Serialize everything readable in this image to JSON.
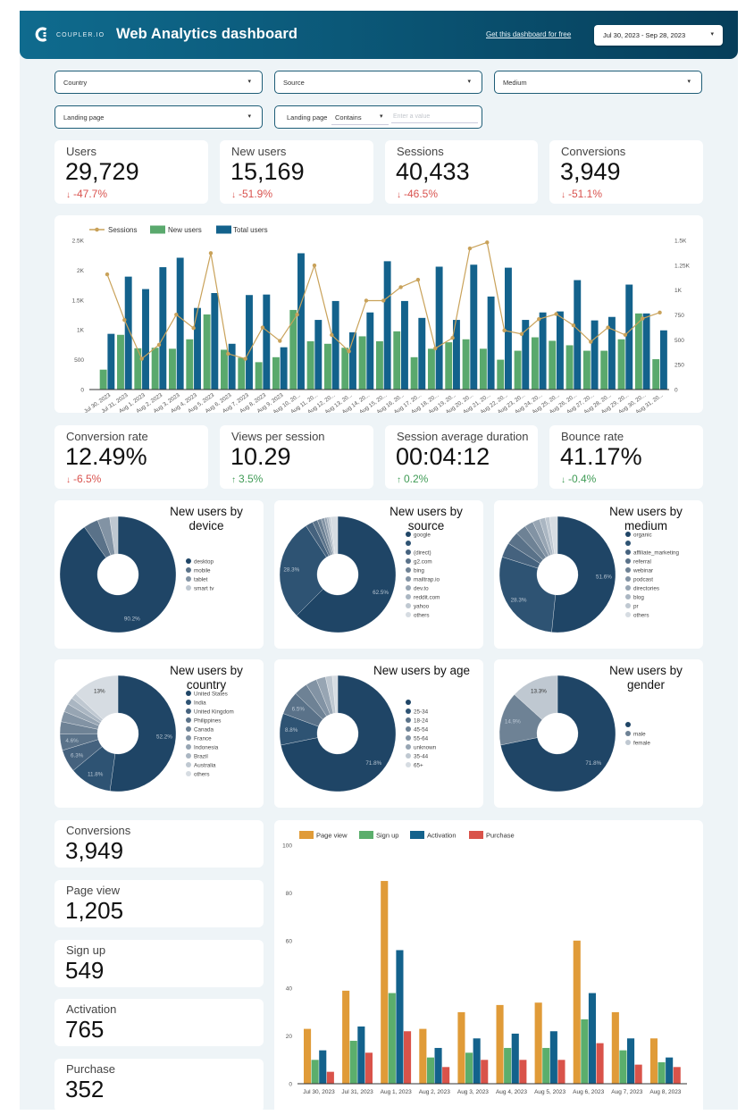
{
  "header": {
    "brand": "COUPLER.IO",
    "logo_icon": "coupler-logo-icon",
    "title": "Web Analytics dashboard",
    "cta": "Get this dashboard for free",
    "date_range": "Jul 30, 2023 - Sep 28, 2023",
    "caret": "▾"
  },
  "filters": {
    "country": "Country",
    "source": "Source",
    "medium": "Medium",
    "landing_page": "Landing page",
    "landing_page_text": {
      "label": "Landing page",
      "operator": "Contains",
      "value": "",
      "placeholder": "Enter a value"
    },
    "caret": "▾"
  },
  "colors": {
    "negative": "#d9534f",
    "positive": "#3f9b55",
    "pie_palette": [
      "#1f4566",
      "#2e5373",
      "#45627e",
      "#5a7289",
      "#6e8295",
      "#8293a4",
      "#97a5b3",
      "#aab6c2",
      "#bfc8d1",
      "#d6dce2"
    ]
  },
  "kpis_top": [
    {
      "label": "Users",
      "value": "29,729",
      "arrow": "↓",
      "change": "-47.7%",
      "color": "#d9534f"
    },
    {
      "label": "New users",
      "value": "15,169",
      "arrow": "↓",
      "change": "-51.9%",
      "color": "#d9534f"
    },
    {
      "label": "Sessions",
      "value": "40,433",
      "arrow": "↓",
      "change": "-46.5%",
      "color": "#d9534f"
    },
    {
      "label": "Conversions",
      "value": "3,949",
      "arrow": "↓",
      "change": "-51.1%",
      "color": "#d9534f"
    }
  ],
  "kpis_mid": [
    {
      "label": "Conversion rate",
      "value": "12.49%",
      "arrow": "↓",
      "change": "-6.5%",
      "color": "#d9534f"
    },
    {
      "label": "Views per session",
      "value": "10.29",
      "arrow": "↑",
      "change": "3.5%",
      "color": "#3f9b55"
    },
    {
      "label": "Session average duration",
      "value": "00:04:12",
      "arrow": "↑",
      "change": "0.2%",
      "color": "#3f9b55"
    },
    {
      "label": "Bounce rate",
      "value": "41.17%",
      "arrow": "↓",
      "change": "-0.4%",
      "color": "#3f9b55"
    }
  ],
  "conversion_cards": [
    {
      "label": "Conversions",
      "value": "3,949"
    },
    {
      "label": "Page view",
      "value": "1,205"
    },
    {
      "label": "Sign up",
      "value": "549"
    },
    {
      "label": "Activation",
      "value": "765"
    },
    {
      "label": "Purchase",
      "value": "352"
    }
  ],
  "chart_data": [
    {
      "type": "bar",
      "title": "",
      "xlabel": "",
      "ylabel": "",
      "grid": false,
      "legend": "top-left",
      "y_left_range": [
        0,
        2500
      ],
      "y_right_range": [
        0,
        1500
      ],
      "y_left_ticks": [
        {
          "value": 0,
          "label": "0"
        },
        {
          "value": 500,
          "label": "500"
        },
        {
          "value": 1000,
          "label": "1K"
        },
        {
          "value": 1500,
          "label": "1.5K"
        },
        {
          "value": 2000,
          "label": "2K"
        },
        {
          "value": 2500,
          "label": "2.5K"
        }
      ],
      "y_right_ticks": [
        {
          "value": 0,
          "label": "0"
        },
        {
          "value": 250,
          "label": "250"
        },
        {
          "value": 500,
          "label": "500"
        },
        {
          "value": 750,
          "label": "750"
        },
        {
          "value": 1000,
          "label": "1K"
        },
        {
          "value": 1250,
          "label": "1.25K"
        },
        {
          "value": 1500,
          "label": "1.5K"
        }
      ],
      "categories": [
        "Jul 30, 2023",
        "Jul 31, 2023",
        "Aug 1, 2023",
        "Aug 2, 2023",
        "Aug 3, 2023",
        "Aug 4, 2023",
        "Aug 5, 2023",
        "Aug 6, 2023",
        "Aug 7, 2023",
        "Aug 8, 2023",
        "Aug 9, 2023",
        "Aug 10, 20...",
        "Aug 11, 20...",
        "Aug 12, 20...",
        "Aug 13, 20...",
        "Aug 14, 20...",
        "Aug 15, 20...",
        "Aug 16, 20...",
        "Aug 17, 20...",
        "Aug 18, 20...",
        "Aug 19, 20...",
        "Aug 20, 20...",
        "Aug 21, 20...",
        "Aug 22, 20...",
        "Aug 23, 20...",
        "Aug 24, 20...",
        "Aug 25, 20...",
        "Aug 26, 20...",
        "Aug 27, 20...",
        "Aug 28, 20...",
        "Aug 29, 20...",
        "Aug 30, 20...",
        "Aug 31, 20..."
      ],
      "series": [
        {
          "name": "Sessions",
          "type": "line",
          "axis": "left",
          "color": "#c9a25a",
          "values": [
            1930,
            1165,
            515,
            750,
            1255,
            1030,
            2285,
            600,
            515,
            1040,
            815,
            1255,
            2080,
            915,
            640,
            1490,
            1490,
            1715,
            1840,
            690,
            865,
            2365,
            2465,
            990,
            930,
            1180,
            1265,
            1075,
            800,
            1040,
            915,
            1190,
            1290
          ]
        },
        {
          "name": "New users",
          "type": "bar",
          "axis": "right",
          "color": "#5aa96d",
          "values": [
            200,
            550,
            415,
            420,
            410,
            505,
            755,
            400,
            320,
            275,
            325,
            800,
            485,
            460,
            420,
            535,
            485,
            585,
            325,
            410,
            475,
            505,
            410,
            300,
            390,
            525,
            490,
            445,
            390,
            390,
            505,
            765,
            305
          ]
        },
        {
          "name": "Total users",
          "type": "bar",
          "axis": "right",
          "color": "#13628c",
          "values": [
            560,
            1135,
            1010,
            1230,
            1325,
            820,
            970,
            460,
            950,
            955,
            425,
            1370,
            700,
            890,
            575,
            775,
            1290,
            890,
            720,
            1235,
            700,
            1255,
            935,
            1225,
            700,
            775,
            785,
            1100,
            695,
            730,
            1055,
            765,
            595
          ]
        }
      ]
    },
    {
      "type": "pie",
      "title": "New users by device",
      "labels": [
        "desktop",
        "mobile",
        "tablet",
        "smart tv"
      ],
      "values": [
        90.2,
        4.1,
        3.4,
        2.3
      ]
    },
    {
      "type": "pie",
      "title": "New users by source",
      "labels": [
        "google",
        "",
        "(direct)",
        "g2.com",
        "bing",
        "mailtrap.io",
        "dev.to",
        "reddit.com",
        "yahoo",
        "others"
      ],
      "values": [
        62.5,
        28.3,
        2.1,
        1.4,
        1.1,
        0.9,
        0.7,
        0.5,
        0.5,
        2.0
      ]
    },
    {
      "type": "pie",
      "title": "New users by medium",
      "labels": [
        "organic",
        "",
        "affiliate_marketing",
        "referral",
        "webinar",
        "podcast",
        "directories",
        "blog",
        "pr",
        "others"
      ],
      "values": [
        51.6,
        28.3,
        4.1,
        3.6,
        3.0,
        2.4,
        2.0,
        1.6,
        1.2,
        2.2
      ]
    },
    {
      "type": "pie",
      "title": "New users by country",
      "labels": [
        "United States",
        "India",
        "United Kingdom",
        "Philippines",
        "Canada",
        "France",
        "Indonesia",
        "Brazil",
        "Australia",
        "others"
      ],
      "values": [
        52.2,
        11.8,
        6.3,
        4.6,
        3.4,
        2.9,
        2.3,
        1.9,
        1.6,
        13
      ]
    },
    {
      "type": "pie",
      "title": "New users by age",
      "labels": [
        "",
        "25-34",
        "18-24",
        "45-54",
        "55-64",
        "unknown",
        "35-44",
        "65+"
      ],
      "values": [
        71.8,
        8.8,
        6.5,
        3.8,
        3.1,
        2.6,
        1.9,
        1.5
      ]
    },
    {
      "type": "pie",
      "title": "New users by gender",
      "labels": [
        "",
        "male",
        "female"
      ],
      "values": [
        71.8,
        14.9,
        13.3
      ]
    },
    {
      "type": "bar",
      "title": "",
      "xlabel": "",
      "ylabel": "",
      "grid": false,
      "legend": "top-left",
      "ylim": [
        0,
        100
      ],
      "y_ticks": [
        0,
        20,
        40,
        60,
        80,
        100
      ],
      "categories": [
        "Jul 30, 2023",
        "Jul 31, 2023",
        "Aug 1, 2023",
        "Aug 2, 2023",
        "Aug 3, 2023",
        "Aug 4, 2023",
        "Aug 5, 2023",
        "Aug 6, 2023",
        "Aug 7, 2023",
        "Aug 8, 2023"
      ],
      "series": [
        {
          "name": "Page view",
          "color": "#e09b38",
          "values": [
            23,
            39,
            85,
            23,
            30,
            33,
            34,
            60,
            30,
            19
          ]
        },
        {
          "name": "Sign up",
          "color": "#5bae6c",
          "values": [
            10,
            18,
            38,
            11,
            13,
            15,
            15,
            27,
            14,
            9
          ]
        },
        {
          "name": "Activation",
          "color": "#13628c",
          "values": [
            14,
            24,
            56,
            15,
            19,
            21,
            22,
            38,
            19,
            11
          ]
        },
        {
          "name": "Purchase",
          "color": "#d9534a",
          "values": [
            5,
            13,
            22,
            7,
            10,
            10,
            10,
            17,
            8,
            7
          ]
        }
      ]
    }
  ]
}
